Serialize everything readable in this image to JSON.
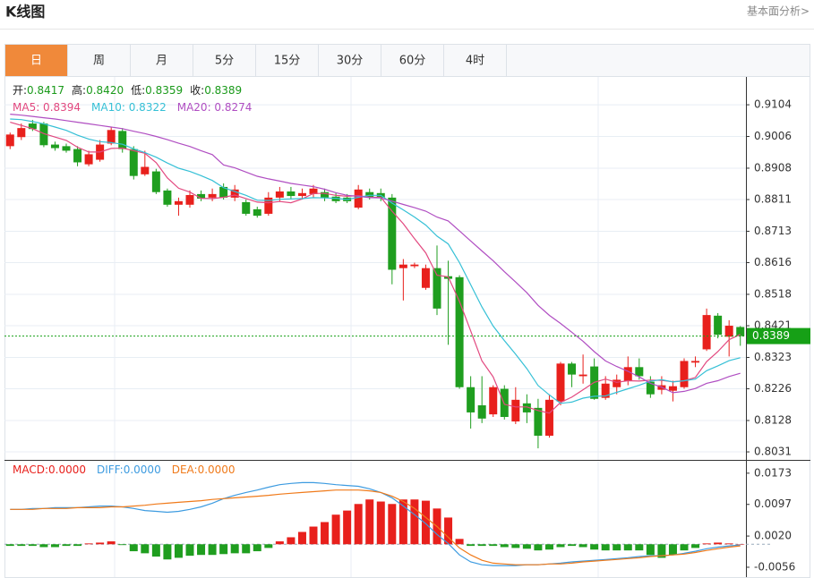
{
  "header": {
    "title": "K线图",
    "link": "基本面分析>"
  },
  "tabs": [
    "日",
    "周",
    "月",
    "5分",
    "15分",
    "30分",
    "60分",
    "4时"
  ],
  "active_tab": 0,
  "chart_data": [
    {
      "type": "candlestick",
      "info": [
        {
          "label": "开:",
          "value": "0.8417"
        },
        {
          "label": "高:",
          "value": "0.8420"
        },
        {
          "label": "低:",
          "value": "0.8359"
        },
        {
          "label": "收:",
          "value": "0.8389"
        }
      ],
      "up_color": "#e8201c",
      "down_color": "#1f9e1f",
      "open": [
        0.8976,
        0.9004,
        0.9046,
        0.9046,
        0.8981,
        0.8976,
        0.8967,
        0.892,
        0.8934,
        0.8984,
        0.9023,
        0.8967,
        0.8889,
        0.8898,
        0.8839,
        0.8795,
        0.8795,
        0.8828,
        0.8817,
        0.885,
        0.8817,
        0.8803,
        0.8781,
        0.8767,
        0.8817,
        0.8836,
        0.8822,
        0.8828,
        0.8834,
        0.882,
        0.8817,
        0.8786,
        0.8834,
        0.8831,
        0.8817,
        0.8599,
        0.8605,
        0.8538,
        0.8599,
        0.8574,
        0.8571,
        0.8231,
        0.8175,
        0.8147,
        0.8226,
        0.8125,
        0.8181,
        0.8167,
        0.8081,
        0.8187,
        0.8304,
        0.8265,
        0.8295,
        0.8198,
        0.8231,
        0.8251,
        0.8293,
        0.8248,
        0.8223,
        0.822,
        0.8231,
        0.8307,
        0.8348,
        0.8452,
        0.8387,
        0.8417
      ],
      "high": [
        0.9018,
        0.9046,
        0.9057,
        0.9051,
        0.899,
        0.8984,
        0.8976,
        0.8962,
        0.8995,
        0.9034,
        0.9032,
        0.8976,
        0.8962,
        0.8906,
        0.8845,
        0.8817,
        0.8839,
        0.8839,
        0.8845,
        0.8861,
        0.8856,
        0.8811,
        0.8789,
        0.8834,
        0.885,
        0.885,
        0.8845,
        0.8856,
        0.8845,
        0.8831,
        0.8828,
        0.8856,
        0.8845,
        0.8845,
        0.8828,
        0.8627,
        0.8616,
        0.861,
        0.8669,
        0.8622,
        0.8577,
        0.8265,
        0.8265,
        0.8237,
        0.8237,
        0.8231,
        0.8209,
        0.8195,
        0.8209,
        0.8309,
        0.8309,
        0.8332,
        0.832,
        0.8265,
        0.827,
        0.8326,
        0.832,
        0.8265,
        0.8265,
        0.8251,
        0.832,
        0.8326,
        0.8474,
        0.846,
        0.8438,
        0.842
      ],
      "low": [
        0.8967,
        0.8995,
        0.9023,
        0.8973,
        0.8962,
        0.8956,
        0.8914,
        0.8914,
        0.8928,
        0.8979,
        0.8956,
        0.8873,
        0.8884,
        0.8828,
        0.8789,
        0.8761,
        0.8786,
        0.8806,
        0.8806,
        0.8811,
        0.8806,
        0.8761,
        0.8755,
        0.8761,
        0.8806,
        0.8811,
        0.8811,
        0.8817,
        0.8806,
        0.88,
        0.88,
        0.8781,
        0.8811,
        0.8806,
        0.8549,
        0.8499,
        0.8599,
        0.8532,
        0.8454,
        0.8362,
        0.8226,
        0.8103,
        0.812,
        0.8139,
        0.8131,
        0.8117,
        0.812,
        0.8042,
        0.8075,
        0.8175,
        0.8231,
        0.8242,
        0.8192,
        0.8192,
        0.8209,
        0.8237,
        0.8254,
        0.8198,
        0.8209,
        0.8187,
        0.8226,
        0.8293,
        0.8343,
        0.8382,
        0.8326,
        0.8359
      ],
      "close": [
        0.9012,
        0.9032,
        0.9029,
        0.8979,
        0.897,
        0.8962,
        0.8926,
        0.8951,
        0.8981,
        0.9026,
        0.8967,
        0.8884,
        0.8912,
        0.8834,
        0.8795,
        0.8806,
        0.8825,
        0.8814,
        0.8828,
        0.8817,
        0.8842,
        0.8767,
        0.8761,
        0.8817,
        0.8836,
        0.8822,
        0.8831,
        0.8845,
        0.8817,
        0.8806,
        0.8806,
        0.8842,
        0.8817,
        0.8817,
        0.8594,
        0.861,
        0.861,
        0.8599,
        0.8474,
        0.8566,
        0.8231,
        0.8153,
        0.8134,
        0.8231,
        0.8139,
        0.8192,
        0.8153,
        0.8081,
        0.8192,
        0.8304,
        0.827,
        0.827,
        0.8195,
        0.8242,
        0.8254,
        0.8293,
        0.8265,
        0.8209,
        0.8237,
        0.8234,
        0.8312,
        0.8312,
        0.8454,
        0.8393,
        0.8421,
        0.8389
      ],
      "series": [
        {
          "name": "MA5: 0.8394",
          "color": "#e2487f",
          "values": [
            0.905,
            0.904,
            0.903,
            0.9015,
            0.9004,
            0.8994,
            0.8973,
            0.8958,
            0.8958,
            0.8969,
            0.897,
            0.8962,
            0.8954,
            0.8925,
            0.8878,
            0.8846,
            0.8834,
            0.8815,
            0.8814,
            0.8818,
            0.8825,
            0.8814,
            0.8803,
            0.8801,
            0.8805,
            0.8801,
            0.8813,
            0.883,
            0.883,
            0.8824,
            0.8821,
            0.8823,
            0.8818,
            0.8818,
            0.8775,
            0.8736,
            0.869,
            0.8646,
            0.8577,
            0.8572,
            0.8496,
            0.8405,
            0.8312,
            0.8263,
            0.8178,
            0.817,
            0.817,
            0.8159,
            0.8151,
            0.8184,
            0.82,
            0.8223,
            0.8246,
            0.8256,
            0.8246,
            0.8251,
            0.825,
            0.8253,
            0.8252,
            0.8248,
            0.8251,
            0.8261,
            0.831,
            0.8341,
            0.8378,
            0.8394
          ]
        },
        {
          "name": "MA10: 0.8322",
          "color": "#36c0d6",
          "values": [
            0.906,
            0.9058,
            0.9052,
            0.9045,
            0.9035,
            0.9025,
            0.901,
            0.8998,
            0.899,
            0.8987,
            0.8982,
            0.8968,
            0.8956,
            0.8942,
            0.8924,
            0.8908,
            0.8898,
            0.8885,
            0.887,
            0.8848,
            0.8836,
            0.8824,
            0.8809,
            0.8808,
            0.8812,
            0.8813,
            0.8814,
            0.8817,
            0.8816,
            0.8815,
            0.8811,
            0.8818,
            0.8824,
            0.8824,
            0.88,
            0.8779,
            0.8757,
            0.8732,
            0.8698,
            0.8674,
            0.8616,
            0.8548,
            0.8479,
            0.842,
            0.8375,
            0.8333,
            0.8288,
            0.8236,
            0.8207,
            0.8181,
            0.8185,
            0.8197,
            0.8203,
            0.8204,
            0.8215,
            0.8226,
            0.8237,
            0.825,
            0.8254,
            0.8247,
            0.8251,
            0.8256,
            0.8282,
            0.8297,
            0.8313,
            0.8322
          ]
        },
        {
          "name": "MA20: 0.8274",
          "color": "#b04ec2",
          "values": [
            0.9075,
            0.9072,
            0.9068,
            0.9064,
            0.906,
            0.9055,
            0.905,
            0.9045,
            0.904,
            0.9035,
            0.903,
            0.9022,
            0.9015,
            0.9006,
            0.8996,
            0.8985,
            0.8975,
            0.8962,
            0.895,
            0.8918,
            0.8909,
            0.8896,
            0.8883,
            0.8875,
            0.8868,
            0.8861,
            0.8856,
            0.8851,
            0.8843,
            0.8832,
            0.8824,
            0.8821,
            0.8817,
            0.8816,
            0.8806,
            0.8796,
            0.8786,
            0.8775,
            0.8757,
            0.8745,
            0.8714,
            0.8683,
            0.8652,
            0.8622,
            0.8588,
            0.8556,
            0.8523,
            0.8484,
            0.8453,
            0.8428,
            0.8401,
            0.8373,
            0.8341,
            0.8312,
            0.8295,
            0.828,
            0.8263,
            0.8243,
            0.8231,
            0.8214,
            0.8218,
            0.8227,
            0.8243,
            0.8251,
            0.8264,
            0.8274
          ]
        }
      ],
      "ylim": [
        0.8009,
        0.919
      ],
      "yticks": [
        0.9104,
        0.9006,
        0.8908,
        0.8811,
        0.8713,
        0.8616,
        0.8518,
        0.8421,
        0.8323,
        0.8226,
        0.8128,
        0.8031
      ],
      "last_price": 0.8389,
      "last_price_color": "#16a016",
      "grid": true
    },
    {
      "type": "macd",
      "series": [
        {
          "name": "MACD:0.0000",
          "kind": "bar",
          "color": "#e8201c",
          "up_color": "#e8201c",
          "down_color": "#1f9e1f",
          "values": [
            -0.0004,
            -0.0004,
            -0.0004,
            -0.0007,
            -0.0007,
            -0.0004,
            -0.0004,
            0.0002,
            0.0004,
            0.0007,
            -0.0002,
            -0.0017,
            -0.0022,
            -0.003,
            -0.0037,
            -0.0033,
            -0.0028,
            -0.0026,
            -0.0026,
            -0.0024,
            -0.0022,
            -0.0022,
            -0.0017,
            -0.0009,
            0.0007,
            0.0017,
            0.003,
            0.0043,
            0.0054,
            0.0072,
            0.0082,
            0.0098,
            0.0109,
            0.0104,
            0.0098,
            0.0109,
            0.0109,
            0.0106,
            0.0087,
            0.0065,
            0.0013,
            -0.0004,
            -0.0004,
            -0.0004,
            -0.0007,
            -0.0009,
            -0.0011,
            -0.0015,
            -0.0013,
            -0.0007,
            -0.0004,
            -0.0007,
            -0.0013,
            -0.0015,
            -0.0015,
            -0.0015,
            -0.0015,
            -0.0026,
            -0.0033,
            -0.0026,
            -0.0015,
            -0.0009,
            0.0002,
            0.0004,
            0.0002,
            0.0
          ]
        },
        {
          "name": "DIFF:0.0000",
          "kind": "line",
          "color": "#3d9be0",
          "values": [
            0.0085,
            0.0085,
            0.0087,
            0.0087,
            0.0089,
            0.0089,
            0.0089,
            0.0091,
            0.0093,
            0.0093,
            0.0091,
            0.0087,
            0.0082,
            0.008,
            0.0078,
            0.008,
            0.0085,
            0.0091,
            0.01,
            0.0111,
            0.0119,
            0.0126,
            0.0132,
            0.0139,
            0.0145,
            0.0148,
            0.015,
            0.015,
            0.0148,
            0.0145,
            0.0143,
            0.0141,
            0.0135,
            0.0126,
            0.0113,
            0.0093,
            0.0072,
            0.005,
            0.0024,
            0.0002,
            -0.0026,
            -0.0043,
            -0.005,
            -0.0052,
            -0.0052,
            -0.0052,
            -0.005,
            -0.005,
            -0.0048,
            -0.0046,
            -0.0043,
            -0.0041,
            -0.0039,
            -0.0037,
            -0.0035,
            -0.0033,
            -0.003,
            -0.0028,
            -0.0028,
            -0.0026,
            -0.0022,
            -0.0017,
            -0.0011,
            -0.0007,
            -0.0004,
            -0.0002
          ]
        },
        {
          "name": "DEA:0.0000",
          "kind": "line",
          "color": "#f07a1a",
          "values": [
            0.0085,
            0.0085,
            0.0085,
            0.0087,
            0.0087,
            0.0087,
            0.0089,
            0.0089,
            0.0089,
            0.0091,
            0.0091,
            0.0093,
            0.0095,
            0.0098,
            0.01,
            0.0102,
            0.0104,
            0.0106,
            0.0109,
            0.0111,
            0.0113,
            0.0115,
            0.0117,
            0.0119,
            0.0122,
            0.0124,
            0.0126,
            0.0128,
            0.013,
            0.0132,
            0.0132,
            0.0132,
            0.013,
            0.0126,
            0.0117,
            0.0104,
            0.0087,
            0.0065,
            0.0043,
            0.0017,
            -0.0009,
            -0.0026,
            -0.0039,
            -0.0046,
            -0.0048,
            -0.005,
            -0.005,
            -0.005,
            -0.0048,
            -0.0048,
            -0.0046,
            -0.0043,
            -0.0041,
            -0.0039,
            -0.0037,
            -0.0035,
            -0.0033,
            -0.003,
            -0.0028,
            -0.0026,
            -0.0024,
            -0.002,
            -0.0015,
            -0.0011,
            -0.0007,
            -0.0004
          ]
        }
      ],
      "ylim": [
        -0.008,
        0.0201
      ],
      "yticks": [
        0.0173,
        0.0097,
        {
          "value": 0.002,
          "label": "0.0020"
        },
        -0.0056
      ]
    }
  ]
}
